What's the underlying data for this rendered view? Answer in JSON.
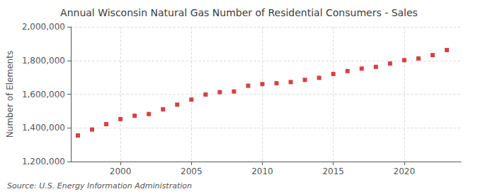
{
  "chart_data": {
    "type": "scatter",
    "title": "Annual Wisconsin Natural Gas Number of Residential Consumers - Sales",
    "ylabel": "Number of Elements",
    "annotation": "Source: U.S. Energy Information Administration",
    "x": [
      1997,
      1998,
      1999,
      2000,
      2001,
      2002,
      2003,
      2004,
      2005,
      2006,
      2007,
      2008,
      2009,
      2010,
      2011,
      2012,
      2013,
      2014,
      2015,
      2016,
      2017,
      2018,
      2019,
      2020,
      2021,
      2022,
      2023
    ],
    "values": [
      1355000,
      1390000,
      1422000,
      1452000,
      1472000,
      1482000,
      1510000,
      1538000,
      1568000,
      1598000,
      1612000,
      1616000,
      1650000,
      1660000,
      1665000,
      1672000,
      1685000,
      1697000,
      1720000,
      1737000,
      1752000,
      1762000,
      1782000,
      1802000,
      1812000,
      1832000,
      1862000
    ],
    "color": "#cc1111",
    "marker": "square",
    "xlim": [
      1996.5,
      2024
    ],
    "xticks": [
      2000,
      2005,
      2010,
      2015,
      2020
    ],
    "ylim": [
      1200000,
      2000000
    ],
    "yticks": [
      {
        "value": 1200000,
        "label": "1,200,000"
      },
      {
        "value": 1400000,
        "label": "1,400,000"
      },
      {
        "value": 1600000,
        "label": "1,600,000"
      },
      {
        "value": 1800000,
        "label": "1,800,000"
      },
      {
        "value": 2000000,
        "label": "2,000,000"
      }
    ],
    "grid": true
  }
}
